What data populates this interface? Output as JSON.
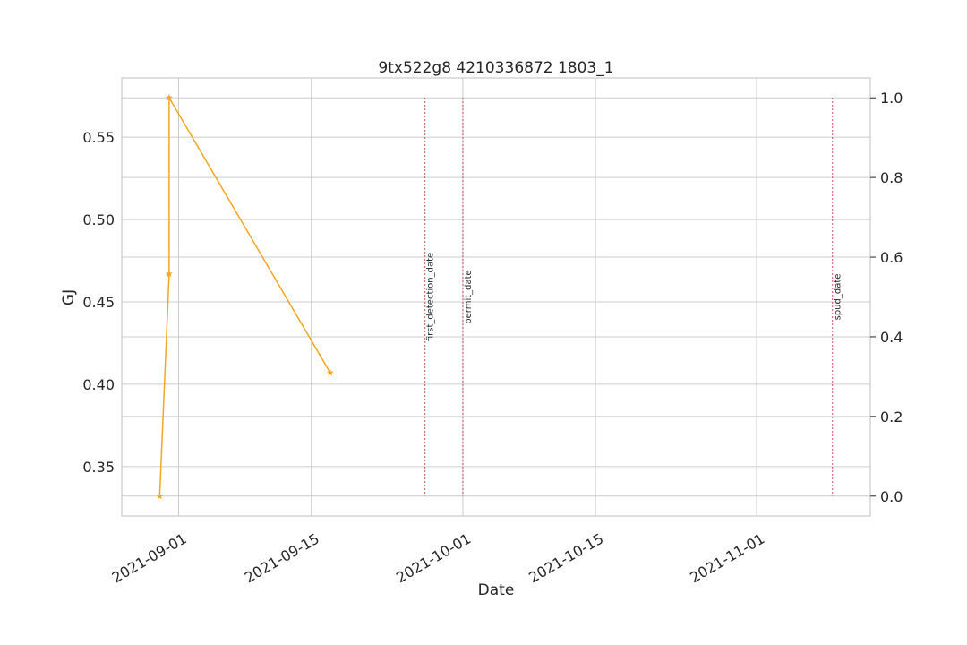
{
  "chart_data": {
    "type": "line",
    "title": "9tx522g8 4210336872 1803_1",
    "xlabel": "Date",
    "ylabel": "GJ",
    "ylabel_color": "#1f77b4",
    "x_ticks": [
      "2021-09-01",
      "2021-09-15",
      "2021-10-01",
      "2021-10-15",
      "2021-11-01"
    ],
    "x_range": [
      "2021-08-26",
      "2021-11-13"
    ],
    "y_ticks": [
      "0.35",
      "0.40",
      "0.45",
      "0.50",
      "0.55"
    ],
    "y_range": [
      0.32,
      0.586
    ],
    "y2_ticks": [
      "0.0",
      "0.2",
      "0.4",
      "0.6",
      "0.8",
      "1.0"
    ],
    "y2_range": [
      -0.05,
      1.05
    ],
    "grid": true,
    "series": [
      {
        "color": "#f5a623",
        "marker": "star",
        "x": [
          "2021-08-30",
          "2021-08-31",
          "2021-08-31",
          "2021-09-17"
        ],
        "y": [
          0.332,
          0.467,
          0.574,
          0.407
        ]
      }
    ],
    "events": [
      {
        "label": "first_detection_date",
        "date": "2021-09-27",
        "color": "#b84a4a"
      },
      {
        "label": "permit_date",
        "date": "2021-10-01",
        "color": "#b84a4a"
      },
      {
        "label": "spud_date",
        "date": "2021-11-09",
        "color": "#b84a4a"
      }
    ]
  }
}
